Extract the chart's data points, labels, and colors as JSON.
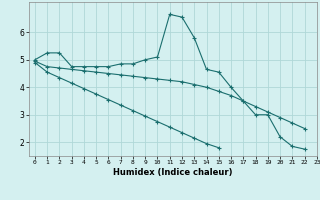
{
  "title": "",
  "xlabel": "Humidex (Indice chaleur)",
  "bg_color": "#d4f0f0",
  "grid_color": "#afd8d8",
  "line_color": "#1a6e6e",
  "x_values": [
    0,
    1,
    2,
    3,
    4,
    5,
    6,
    7,
    8,
    9,
    10,
    11,
    12,
    13,
    14,
    15,
    16,
    17,
    18,
    19,
    20,
    21,
    22,
    23
  ],
  "line1": [
    5.0,
    5.25,
    5.25,
    4.75,
    4.75,
    4.75,
    4.75,
    4.85,
    4.85,
    5.0,
    5.1,
    6.65,
    6.55,
    5.8,
    4.65,
    4.55,
    4.0,
    3.5,
    3.0,
    3.0,
    2.2,
    1.85,
    1.75,
    null
  ],
  "line2": [
    4.95,
    4.75,
    4.7,
    4.65,
    4.6,
    4.55,
    4.5,
    4.45,
    4.4,
    4.35,
    4.3,
    4.25,
    4.2,
    4.1,
    4.0,
    3.85,
    3.7,
    3.5,
    3.3,
    3.1,
    2.9,
    2.7,
    2.5,
    null
  ],
  "line3": [
    4.9,
    4.55,
    4.35,
    4.15,
    3.95,
    3.75,
    3.55,
    3.35,
    3.15,
    2.95,
    2.75,
    2.55,
    2.35,
    2.15,
    1.95,
    1.8,
    null,
    null,
    null,
    null,
    null,
    null,
    null,
    null
  ],
  "xlim": [
    -0.5,
    23
  ],
  "ylim": [
    1.5,
    7.1
  ],
  "yticks": [
    2,
    3,
    4,
    5,
    6
  ],
  "xticks": [
    0,
    1,
    2,
    3,
    4,
    5,
    6,
    7,
    8,
    9,
    10,
    11,
    12,
    13,
    14,
    15,
    16,
    17,
    18,
    19,
    20,
    21,
    22,
    23
  ]
}
